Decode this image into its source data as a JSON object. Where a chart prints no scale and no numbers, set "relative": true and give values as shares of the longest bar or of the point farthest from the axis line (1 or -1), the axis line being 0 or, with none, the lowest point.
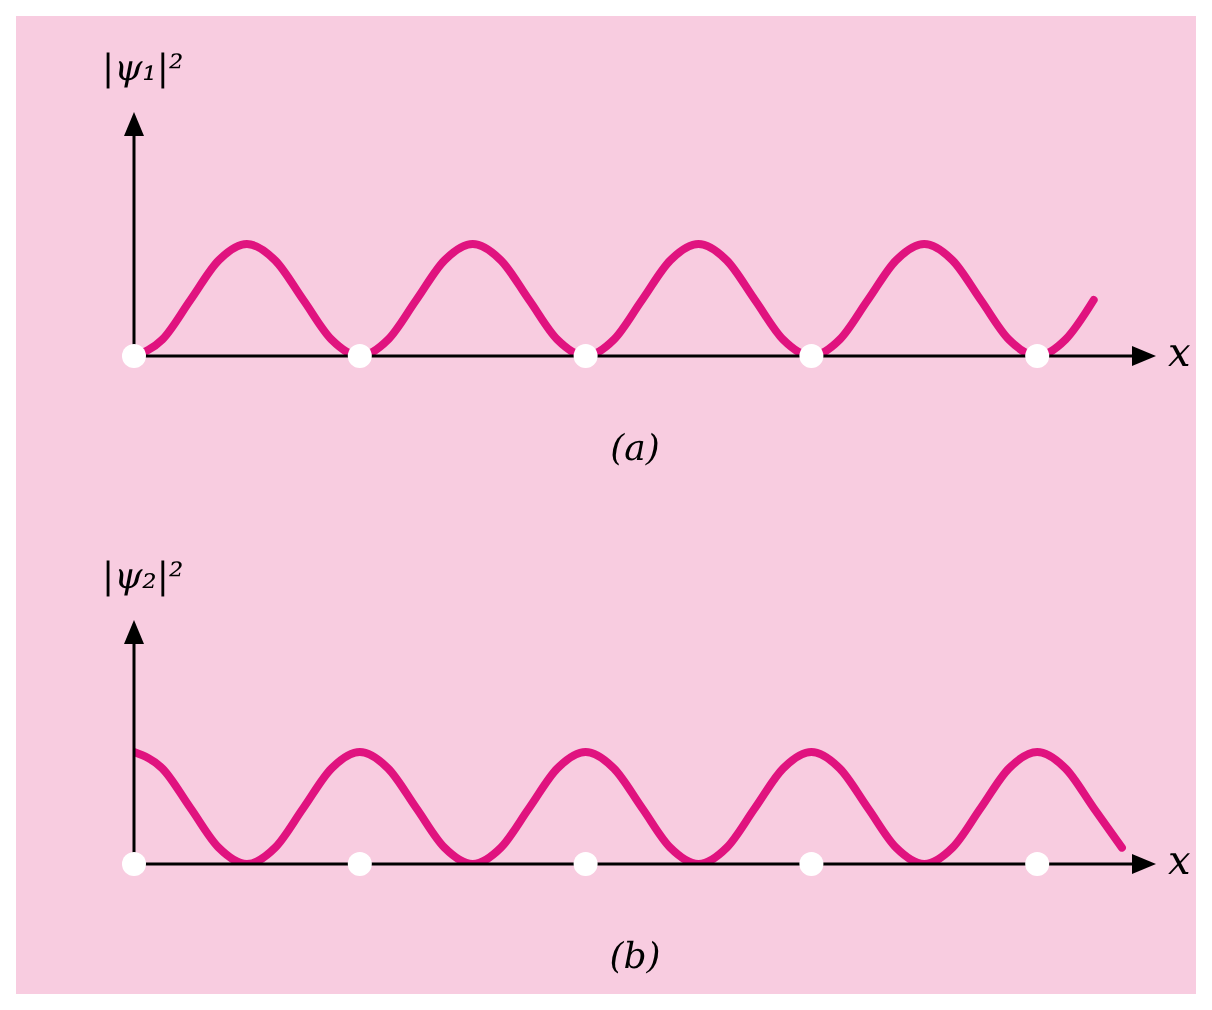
{
  "chart_data": [
    {
      "type": "line",
      "relative": true,
      "ylabel": "|ψ₁|²",
      "xlabel": "x",
      "annotations": [
        "(a)"
      ],
      "color": "#e0137f",
      "categories": [
        null,
        null,
        null,
        null,
        null,
        null,
        null,
        null,
        null,
        null,
        null,
        null,
        null,
        null,
        null,
        null,
        null,
        null,
        null,
        null,
        null,
        null,
        null,
        null,
        null,
        null,
        null,
        null,
        null,
        null,
        null,
        null,
        null,
        null,
        null
      ],
      "values": [
        0,
        0.146,
        0.5,
        0.854,
        1,
        0.854,
        0.5,
        0.146,
        0,
        0.146,
        0.5,
        0.854,
        1,
        0.854,
        0.5,
        0.146,
        0,
        0.146,
        0.5,
        0.854,
        1,
        0.854,
        0.5,
        0.146,
        0,
        0.146,
        0.5,
        0.854,
        1,
        0.854,
        0.5,
        0.146,
        0,
        0.146,
        0.5
      ]
    },
    {
      "type": "line",
      "relative": true,
      "ylabel": "|ψ₂|²",
      "xlabel": "x",
      "annotations": [
        "(b)"
      ],
      "color": "#e0137f",
      "categories": [
        null,
        null,
        null,
        null,
        null,
        null,
        null,
        null,
        null,
        null,
        null,
        null,
        null,
        null,
        null,
        null,
        null,
        null,
        null,
        null,
        null,
        null,
        null,
        null,
        null,
        null,
        null,
        null,
        null,
        null,
        null,
        null,
        null,
        null,
        null,
        null
      ],
      "values": [
        1,
        0.854,
        0.5,
        0.146,
        0,
        0.146,
        0.5,
        0.854,
        1,
        0.854,
        0.5,
        0.146,
        0,
        0.146,
        0.5,
        0.854,
        1,
        0.854,
        0.5,
        0.146,
        0,
        0.146,
        0.5,
        0.854,
        1,
        0.854,
        0.5,
        0.146,
        0,
        0.146,
        0.5,
        0.854,
        1,
        0.854,
        0.5,
        0.146
      ]
    }
  ]
}
